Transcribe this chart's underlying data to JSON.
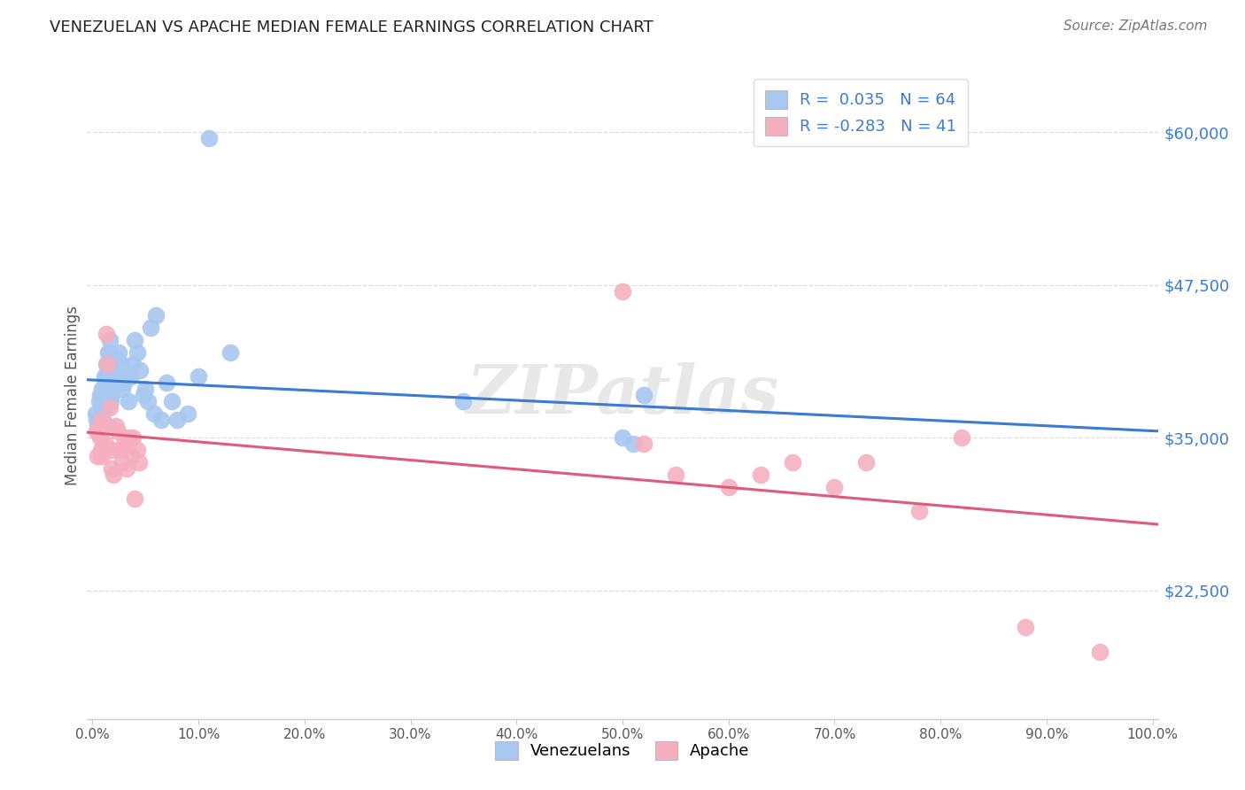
{
  "title": "VENEZUELAN VS APACHE MEDIAN FEMALE EARNINGS CORRELATION CHART",
  "source": "Source: ZipAtlas.com",
  "ylabel": "Median Female Earnings",
  "ytick_labels": [
    "$22,500",
    "$35,000",
    "$47,500",
    "$60,000"
  ],
  "ytick_values": [
    22500,
    35000,
    47500,
    60000
  ],
  "ylim": [
    12000,
    65000
  ],
  "xlim": [
    -0.005,
    1.005
  ],
  "blue_color": "#a8c8f0",
  "pink_color": "#f5afc0",
  "blue_line_color": "#3a7bd5",
  "pink_line_color": "#e05a7a",
  "dashed_line_color": "#bbbbbb",
  "background_color": "#ffffff",
  "watermark": "ZIPatlas",
  "venezuelan_x": [
    0.003,
    0.004,
    0.005,
    0.006,
    0.006,
    0.007,
    0.007,
    0.008,
    0.009,
    0.009,
    0.01,
    0.01,
    0.011,
    0.011,
    0.012,
    0.012,
    0.013,
    0.013,
    0.014,
    0.014,
    0.015,
    0.015,
    0.015,
    0.016,
    0.016,
    0.017,
    0.017,
    0.018,
    0.018,
    0.019,
    0.02,
    0.021,
    0.022,
    0.023,
    0.024,
    0.025,
    0.027,
    0.028,
    0.03,
    0.032,
    0.034,
    0.036,
    0.038,
    0.04,
    0.042,
    0.045,
    0.048,
    0.05,
    0.052,
    0.055,
    0.058,
    0.06,
    0.065,
    0.07,
    0.075,
    0.08,
    0.09,
    0.1,
    0.11,
    0.13,
    0.35,
    0.5,
    0.51,
    0.52
  ],
  "venezuelan_y": [
    37000,
    36500,
    36000,
    38000,
    35500,
    38500,
    36500,
    37500,
    39000,
    37000,
    38000,
    36500,
    40000,
    39000,
    38500,
    37500,
    41000,
    40000,
    39500,
    38000,
    42000,
    41000,
    40500,
    43000,
    42000,
    39000,
    38000,
    40000,
    38500,
    39000,
    41000,
    40000,
    39500,
    41500,
    40000,
    42000,
    41000,
    39000,
    39500,
    40000,
    38000,
    40000,
    41000,
    43000,
    42000,
    40500,
    38500,
    39000,
    38000,
    44000,
    37000,
    45000,
    36500,
    39500,
    38000,
    36500,
    37000,
    40000,
    59500,
    42000,
    38000,
    35000,
    34500,
    38500
  ],
  "apache_x": [
    0.004,
    0.005,
    0.006,
    0.007,
    0.008,
    0.008,
    0.009,
    0.01,
    0.011,
    0.012,
    0.013,
    0.014,
    0.015,
    0.016,
    0.018,
    0.019,
    0.02,
    0.022,
    0.024,
    0.026,
    0.028,
    0.03,
    0.032,
    0.034,
    0.036,
    0.038,
    0.04,
    0.042,
    0.044,
    0.5,
    0.52,
    0.55,
    0.6,
    0.63,
    0.66,
    0.7,
    0.73,
    0.78,
    0.82,
    0.88,
    0.95
  ],
  "apache_y": [
    35500,
    33500,
    36000,
    35000,
    36500,
    34000,
    33500,
    34000,
    36000,
    34500,
    43500,
    41000,
    36000,
    37500,
    32500,
    34000,
    32000,
    36000,
    35500,
    34000,
    33000,
    34500,
    32500,
    35000,
    33500,
    35000,
    30000,
    34000,
    33000,
    47000,
    34500,
    32000,
    31000,
    32000,
    33000,
    31000,
    33000,
    29000,
    35000,
    19500,
    17500
  ]
}
